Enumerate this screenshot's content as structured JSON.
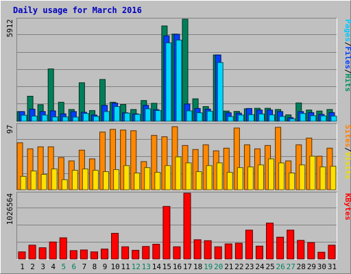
{
  "chart_data": {
    "type": "bar",
    "title": "Daily usage for March 2016",
    "days": [
      "1",
      "2",
      "3",
      "4",
      "5",
      "6",
      "7",
      "8",
      "9",
      "10",
      "11",
      "12",
      "13",
      "14",
      "15",
      "16",
      "17",
      "18",
      "19",
      "20",
      "21",
      "22",
      "23",
      "24",
      "25",
      "26",
      "27",
      "28",
      "29",
      "30",
      "31"
    ],
    "weekend_days": [
      "5",
      "6",
      "12",
      "13",
      "19",
      "20",
      "26",
      "27"
    ],
    "panels": [
      {
        "id": "hits-files-pages",
        "ymax_label": "5912",
        "ymax": 5912,
        "legend": [
          "Pages",
          "/",
          "Files",
          "/",
          "Hits"
        ],
        "legend_colors": [
          "#00c8ff",
          "#000000",
          "#0040ff",
          "#000000",
          "#009060"
        ],
        "series": [
          {
            "name": "Hits",
            "color": "#00805a",
            "values": [
              560,
              1450,
              960,
              3030,
              1100,
              680,
              2230,
              620,
              2420,
              1100,
              970,
              680,
              1200,
              1040,
              5520,
              5050,
              5910,
              1300,
              850,
              3840,
              590,
              570,
              720,
              750,
              750,
              680,
              370,
              1060,
              650,
              590,
              680
            ]
          },
          {
            "name": "Files",
            "color": "#0040ff",
            "values": [
              560,
              700,
              560,
              600,
              430,
              560,
              520,
              360,
              920,
              1050,
              490,
              430,
              920,
              670,
              4950,
              5040,
              1000,
              740,
              700,
              3840,
              490,
              470,
              740,
              650,
              650,
              560,
              210,
              560,
              500,
              400,
              500
            ]
          },
          {
            "name": "Pages",
            "color": "#00d8ff",
            "values": [
              350,
              300,
              360,
              250,
              250,
              240,
              450,
              280,
              560,
              850,
              470,
              400,
              720,
              620,
              4540,
              4700,
              600,
              490,
              580,
              3400,
              270,
              360,
              380,
              420,
              370,
              280,
              140,
              450,
              320,
              310,
              300
            ]
          }
        ]
      },
      {
        "id": "visits-sites",
        "ymax_label": "97",
        "ymax": 97,
        "legend": [
          "Sites",
          "/",
          "Visits"
        ],
        "legend_colors": [
          "#ff8000",
          "#000000",
          "#e8e000"
        ],
        "series": [
          {
            "name": "Visits",
            "color": "#ff8800",
            "values": [
              70,
              61,
              64,
              64,
              48,
              43,
              59,
              46,
              86,
              90,
              89,
              88,
              42,
              81,
              79,
              94,
              66,
              60,
              67,
              58,
              62,
              92,
              67,
              61,
              66,
              93,
              43,
              67,
              77,
              50,
              62
            ]
          },
          {
            "name": "Sites",
            "color": "#ffe000",
            "values": [
              20,
              28,
              23,
              31,
              15,
              29,
              31,
              29,
              27,
              30,
              36,
              25,
              33,
              26,
              36,
              49,
              40,
              27,
              36,
              40,
              26,
              33,
              34,
              37,
              46,
              40,
              25,
              37,
              50,
              34,
              35
            ]
          }
        ]
      },
      {
        "id": "kbytes",
        "ymax_label": "1026564",
        "ymax": 1026564,
        "legend": [
          "KBytes"
        ],
        "legend_colors": [
          "#ff0000"
        ],
        "series": [
          {
            "name": "KBytes",
            "color": "#ff0000",
            "values": [
              110000,
              215000,
              175000,
              265000,
              330000,
              130000,
              140000,
              110000,
              155000,
              400000,
              190000,
              135000,
              195000,
              230000,
              820000,
              190000,
              1026564,
              300000,
              285000,
              190000,
              235000,
              245000,
              450000,
              200000,
              560000,
              340000,
              450000,
              290000,
              255000,
              105000,
              215000
            ]
          }
        ]
      }
    ]
  }
}
